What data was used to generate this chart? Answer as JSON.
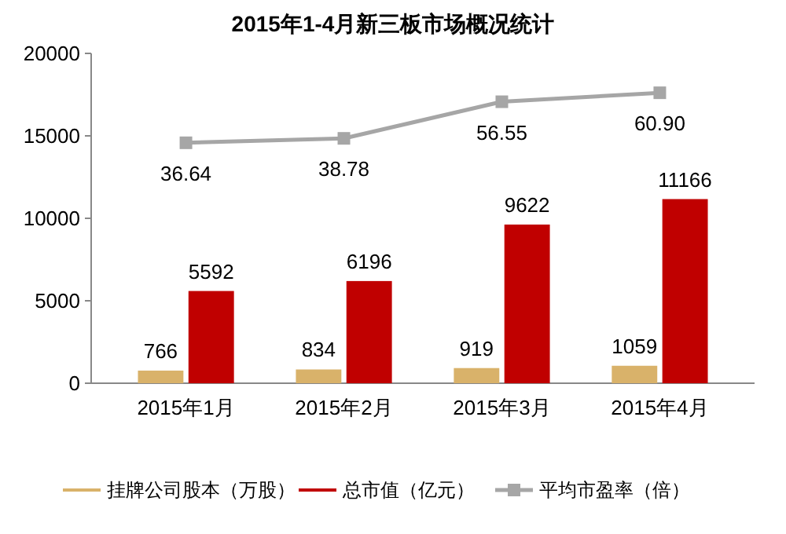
{
  "chart_data": {
    "type": "bar",
    "title": "2015年1-4月新三板市场概况统计",
    "categories": [
      "2015年1月",
      "2015年2月",
      "2015年3月",
      "2015年4月"
    ],
    "series": [
      {
        "name": "挂牌公司股本（万股）",
        "color": "#d9b26a",
        "values": [
          766,
          834,
          919,
          1059
        ]
      },
      {
        "name": "总市值（亿元）",
        "color": "#c00000",
        "values": [
          5592,
          6196,
          9622,
          11166
        ]
      },
      {
        "name": "平均市盈率（倍）",
        "color": "#a6a6a6",
        "type": "line",
        "axis": "y2",
        "marker": "square",
        "values": [
          36.64,
          38.78,
          56.55,
          60.9
        ],
        "value_labels": [
          "36.64",
          "38.78",
          "56.55",
          "60.90"
        ]
      }
    ],
    "ylim": [
      0,
      20000
    ],
    "yticks": [
      0,
      5000,
      10000,
      15000,
      20000
    ],
    "y2lim": [
      -80,
      80
    ],
    "data_labels": true,
    "grid": false,
    "legend": "bottom"
  }
}
